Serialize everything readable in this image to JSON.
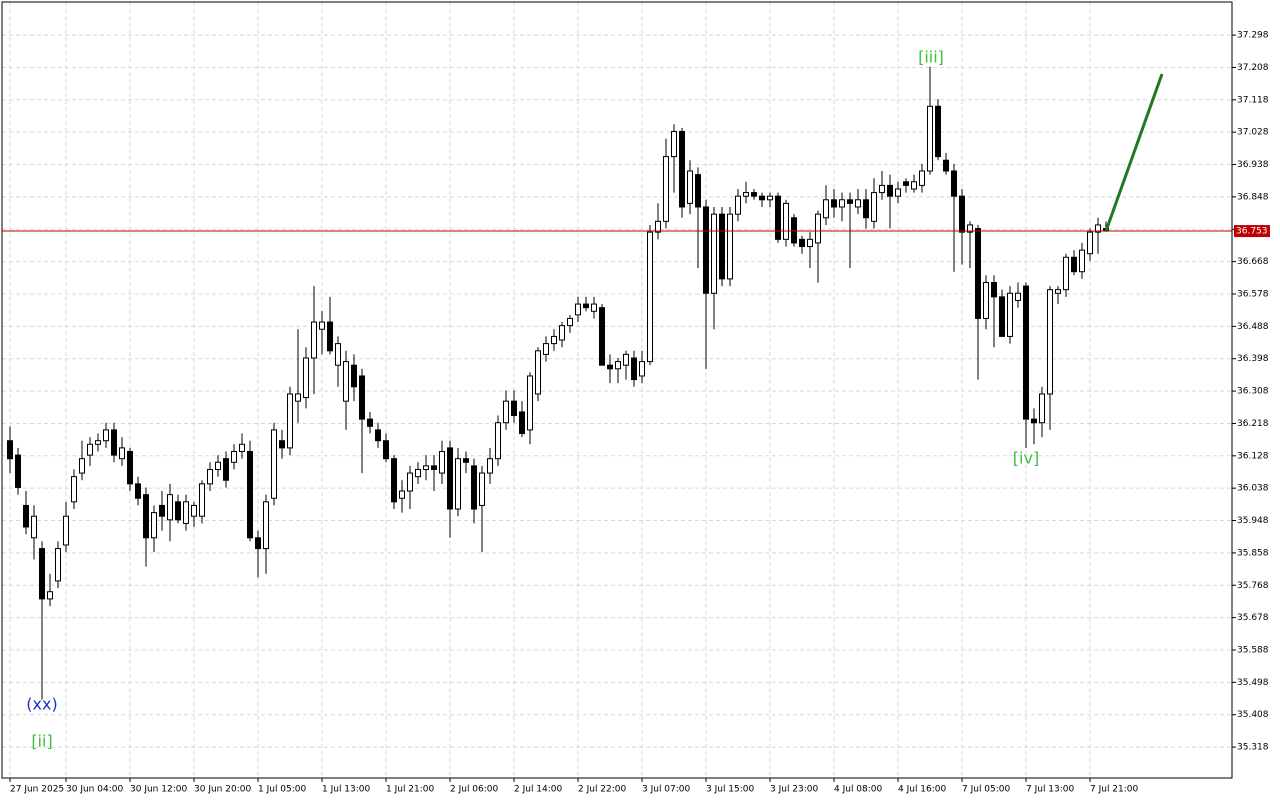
{
  "chart_data": {
    "type": "candlestick",
    "categories": [
      "27 Jun 2025",
      null,
      null,
      null,
      null,
      null,
      null,
      "30 Jun 04:00",
      null,
      null,
      null,
      null,
      null,
      null,
      null,
      "30 Jun 12:00",
      null,
      null,
      null,
      null,
      null,
      null,
      null,
      "30 Jun 20:00",
      null,
      null,
      null,
      null,
      null,
      null,
      null,
      "1 Jul 05:00",
      null,
      null,
      null,
      null,
      null,
      null,
      null,
      "1 Jul 13:00",
      null,
      null,
      null,
      null,
      null,
      null,
      null,
      "1 Jul 21:00",
      null,
      null,
      null,
      null,
      null,
      null,
      null,
      "2 Jul 06:00",
      null,
      null,
      null,
      null,
      null,
      null,
      null,
      "2 Jul 14:00",
      null,
      null,
      null,
      null,
      null,
      null,
      null,
      "2 Jul 22:00",
      null,
      null,
      null,
      null,
      null,
      null,
      null,
      "3 Jul 07:00",
      null,
      null,
      null,
      null,
      null,
      null,
      null,
      "3 Jul 15:00",
      null,
      null,
      null,
      null,
      null,
      null,
      null,
      "3 Jul 23:00",
      null,
      null,
      null,
      null,
      null,
      null,
      null,
      "4 Jul 08:00",
      null,
      null,
      null,
      null,
      null,
      null,
      null,
      "4 Jul 16:00",
      null,
      null,
      null,
      null,
      null,
      null,
      null,
      "7 Jul 05:00",
      null,
      null,
      null,
      null,
      null,
      null,
      null,
      "7 Jul 13:00",
      null,
      null,
      null,
      null,
      null,
      null,
      null,
      "7 Jul 21:00",
      null,
      null
    ],
    "open": [
      36.17,
      36.13,
      35.99,
      35.9,
      35.87,
      35.73,
      35.78,
      35.88,
      36.0,
      36.08,
      36.13,
      36.16,
      36.17,
      36.2,
      36.12,
      36.14,
      36.05,
      36.02,
      35.9,
      35.99,
      35.95,
      36.0,
      35.94,
      35.96,
      35.96,
      36.05,
      36.09,
      36.12,
      36.11,
      36.14,
      36.14,
      35.9,
      35.87,
      36.01,
      36.17,
      36.15,
      36.28,
      36.29,
      36.4,
      36.48,
      36.5,
      36.38,
      36.28,
      36.38,
      36.35,
      36.23,
      36.2,
      36.17,
      36.12,
      36.01,
      36.03,
      36.07,
      36.09,
      36.1,
      36.08,
      36.15,
      35.98,
      36.12,
      36.1,
      35.99,
      36.08,
      36.12,
      36.22,
      36.28,
      36.25,
      36.2,
      36.3,
      36.41,
      36.44,
      36.45,
      36.49,
      36.52,
      36.55,
      36.53,
      36.54,
      36.38,
      36.37,
      36.38,
      36.4,
      36.35,
      36.39,
      36.75,
      36.78,
      36.96,
      37.03,
      36.83,
      36.91,
      36.82,
      36.58,
      36.8,
      36.62,
      36.8,
      36.85,
      36.86,
      36.85,
      36.84,
      36.85,
      36.73,
      36.79,
      36.73,
      36.71,
      36.72,
      36.79,
      36.84,
      36.82,
      36.84,
      36.82,
      36.84,
      36.78,
      36.86,
      36.88,
      36.85,
      36.89,
      36.87,
      36.88,
      36.92,
      37.1,
      36.95,
      36.92,
      36.85,
      36.75,
      36.76,
      36.51,
      36.61,
      36.57,
      36.46,
      36.56,
      36.6,
      36.23,
      36.22,
      36.3,
      36.58,
      36.59,
      36.68,
      36.64,
      36.69,
      36.75,
      36.76
    ],
    "high": [
      36.21,
      36.15,
      36.03,
      35.99,
      35.89,
      35.8,
      35.89,
      36.0,
      36.09,
      36.17,
      36.18,
      36.19,
      36.22,
      36.22,
      36.18,
      36.15,
      36.07,
      36.04,
      35.99,
      36.03,
      36.05,
      36.02,
      36.02,
      36.0,
      36.06,
      36.11,
      36.13,
      36.14,
      36.16,
      36.19,
      36.17,
      35.92,
      36.02,
      36.22,
      36.2,
      36.32,
      36.48,
      36.43,
      36.6,
      36.53,
      36.57,
      36.46,
      36.42,
      36.41,
      36.37,
      36.25,
      36.22,
      36.19,
      36.13,
      36.06,
      36.1,
      36.11,
      36.13,
      36.13,
      36.17,
      36.17,
      36.15,
      36.14,
      36.12,
      36.1,
      36.15,
      36.24,
      36.31,
      36.31,
      36.28,
      36.36,
      36.43,
      36.46,
      36.48,
      36.5,
      36.52,
      36.57,
      36.57,
      36.57,
      36.55,
      36.41,
      36.4,
      36.42,
      36.42,
      36.42,
      36.77,
      36.83,
      37.01,
      37.05,
      37.04,
      36.95,
      36.93,
      36.84,
      36.82,
      36.82,
      36.82,
      36.87,
      36.89,
      36.87,
      36.86,
      36.86,
      36.86,
      36.84,
      36.8,
      36.74,
      36.75,
      36.81,
      36.88,
      36.87,
      36.86,
      36.86,
      36.87,
      36.87,
      36.9,
      36.92,
      36.91,
      36.89,
      36.9,
      36.91,
      36.94,
      37.21,
      37.12,
      36.97,
      36.94,
      36.87,
      36.78,
      36.77,
      36.63,
      36.63,
      36.59,
      36.6,
      36.61,
      36.61,
      36.26,
      36.32,
      36.6,
      36.6,
      36.69,
      36.7,
      36.72,
      36.76,
      36.79,
      36.78
    ],
    "low": [
      36.08,
      36.02,
      35.91,
      35.84,
      35.45,
      35.71,
      35.76,
      35.86,
      35.98,
      36.06,
      36.1,
      36.14,
      36.15,
      36.11,
      36.1,
      36.03,
      35.99,
      35.82,
      35.86,
      35.92,
      35.89,
      35.94,
      35.92,
      35.93,
      35.94,
      36.03,
      36.07,
      36.04,
      36.09,
      36.12,
      35.89,
      35.79,
      35.8,
      35.99,
      36.12,
      36.13,
      36.22,
      36.26,
      36.3,
      36.41,
      36.41,
      36.32,
      36.2,
      36.28,
      36.08,
      36.19,
      36.15,
      36.11,
      35.98,
      35.97,
      35.98,
      36.05,
      36.06,
      36.03,
      36.05,
      35.9,
      35.96,
      36.08,
      35.94,
      35.86,
      36.05,
      36.1,
      36.2,
      36.22,
      36.18,
      36.16,
      36.28,
      36.39,
      36.42,
      36.43,
      36.47,
      36.5,
      36.53,
      36.51,
      36.38,
      36.33,
      36.33,
      36.34,
      36.32,
      36.33,
      36.38,
      36.73,
      36.76,
      36.86,
      36.79,
      36.8,
      36.65,
      36.37,
      36.48,
      36.6,
      36.6,
      36.78,
      36.83,
      36.84,
      36.82,
      36.82,
      36.72,
      36.71,
      36.71,
      36.69,
      36.65,
      36.61,
      36.77,
      36.79,
      36.78,
      36.65,
      36.8,
      36.76,
      36.76,
      36.84,
      36.76,
      36.83,
      36.86,
      36.86,
      36.86,
      36.91,
      36.95,
      36.91,
      36.64,
      36.66,
      36.65,
      36.34,
      36.48,
      36.43,
      36.46,
      36.44,
      36.54,
      36.15,
      36.16,
      36.18,
      36.2,
      36.55,
      36.57,
      36.63,
      36.62,
      36.67,
      36.69,
      36.75
    ],
    "close": [
      36.12,
      36.04,
      35.93,
      35.96,
      35.73,
      35.75,
      35.87,
      35.96,
      36.07,
      36.12,
      36.16,
      36.17,
      36.2,
      36.13,
      36.15,
      36.05,
      36.01,
      35.9,
      35.97,
      35.96,
      36.02,
      35.95,
      36.0,
      35.99,
      36.05,
      36.09,
      36.11,
      36.06,
      36.14,
      36.16,
      35.9,
      35.87,
      36.0,
      36.2,
      36.15,
      36.3,
      36.3,
      36.4,
      36.5,
      36.5,
      36.42,
      36.44,
      36.39,
      36.32,
      36.23,
      36.21,
      36.17,
      36.12,
      36.0,
      36.03,
      36.08,
      36.09,
      36.1,
      36.09,
      36.14,
      35.98,
      36.12,
      36.11,
      35.98,
      36.08,
      36.12,
      36.22,
      36.28,
      36.24,
      36.19,
      36.35,
      36.42,
      36.44,
      36.46,
      36.49,
      36.51,
      36.55,
      36.54,
      36.55,
      36.38,
      36.37,
      36.39,
      36.41,
      36.34,
      36.39,
      36.75,
      36.78,
      36.96,
      37.03,
      36.82,
      36.92,
      36.82,
      36.58,
      36.8,
      36.62,
      36.8,
      36.85,
      36.86,
      36.85,
      36.84,
      36.85,
      36.73,
      36.83,
      36.72,
      36.71,
      36.73,
      36.8,
      36.84,
      36.82,
      36.84,
      36.83,
      36.84,
      36.79,
      36.86,
      36.88,
      36.85,
      36.87,
      36.88,
      36.89,
      36.92,
      37.1,
      36.96,
      36.92,
      36.85,
      36.75,
      36.77,
      36.51,
      36.61,
      36.57,
      36.46,
      36.58,
      36.58,
      36.23,
      36.22,
      36.3,
      36.59,
      36.59,
      36.68,
      36.64,
      36.7,
      36.75,
      36.77,
      36.753
    ],
    "up_color": "#ffffff",
    "down_color": "#000000",
    "current_price": 36.753,
    "current_price_color": "#c00000",
    "ylim": [
      35.232,
      37.39
    ],
    "yticks": [
      35.318,
      35.408,
      35.498,
      35.588,
      35.678,
      35.768,
      35.858,
      35.948,
      36.038,
      36.128,
      36.218,
      36.308,
      36.398,
      36.488,
      36.578,
      36.668,
      36.758,
      36.848,
      36.938,
      37.028,
      37.118,
      37.208,
      37.298
    ],
    "grid": true,
    "annotations": [
      {
        "text": "(xx)",
        "color": "#1a2fd0"
      },
      {
        "text": "[ii]",
        "color": "#3cc23c"
      },
      {
        "text": "[iii]",
        "color": "#3cc23c"
      },
      {
        "text": "[iv]",
        "color": "#3cc23c"
      }
    ]
  }
}
